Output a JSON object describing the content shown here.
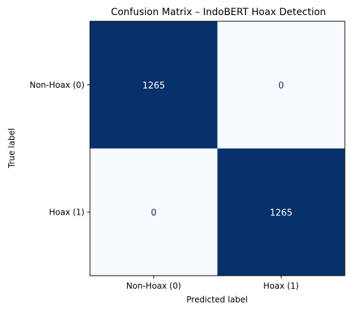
{
  "chart_data": {
    "type": "heatmap",
    "title": "Confusion Matrix – IndoBERT Hoax Detection",
    "xlabel": "Predicted label",
    "ylabel": "True label",
    "x_categories": [
      "Non-Hoax (0)",
      "Hoax (1)"
    ],
    "y_categories": [
      "Non-Hoax (0)",
      "Hoax (1)"
    ],
    "values": [
      [
        1265,
        0
      ],
      [
        0,
        1265
      ]
    ],
    "value_labels": [
      [
        "1265",
        "0"
      ],
      [
        "0",
        "1265"
      ]
    ],
    "colormap": "Blues",
    "color_low": "#f7fbff",
    "color_high": "#08306b",
    "text_on_dark": "#ffffff",
    "text_on_light": "#08306b"
  }
}
